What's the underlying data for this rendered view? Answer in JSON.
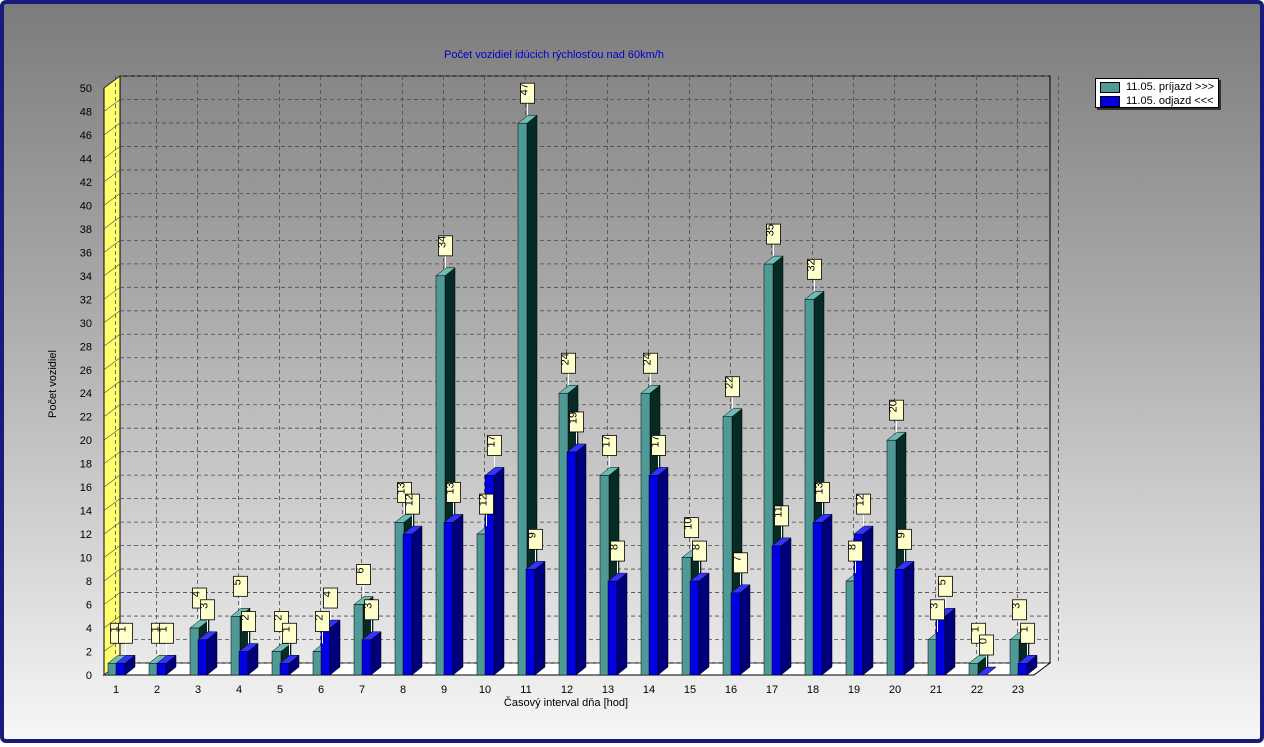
{
  "colors": {
    "arrival_front": "#4f9a96",
    "arrival_top": "#6fbcb6",
    "arrival_side": "#062a24",
    "departure_front": "#0000e0",
    "departure_top": "#3434ff",
    "departure_side": "#00007a",
    "title": "#0000c8",
    "wall_accent": "#ffff70"
  },
  "chart_data": {
    "type": "bar",
    "title": "Počet vozidiel idúcich rýchlosťou nad 60km/h",
    "xlabel": "Časový interval dňa [hod]",
    "ylabel": "Počet vozidiel",
    "ylim": [
      0,
      50
    ],
    "ytick_step": 2,
    "grid": true,
    "legend_position": "top-right",
    "categories": [
      "1",
      "2",
      "3",
      "4",
      "5",
      "6",
      "7",
      "8",
      "9",
      "10",
      "11",
      "12",
      "13",
      "14",
      "15",
      "16",
      "17",
      "18",
      "19",
      "20",
      "21",
      "22",
      "23"
    ],
    "series": [
      {
        "name": "11.05.  príjazd >>>",
        "values": [
          1,
          1,
          4,
          5,
          2,
          2,
          6,
          13,
          34,
          12,
          47,
          24,
          17,
          24,
          10,
          22,
          35,
          32,
          8,
          20,
          3,
          1,
          3
        ]
      },
      {
        "name": "11.05.  odjazd <<<",
        "values": [
          1,
          1,
          3,
          2,
          1,
          4,
          3,
          12,
          13,
          17,
          9,
          19,
          8,
          17,
          8,
          7,
          11,
          13,
          12,
          9,
          5,
          0,
          1
        ]
      }
    ]
  }
}
